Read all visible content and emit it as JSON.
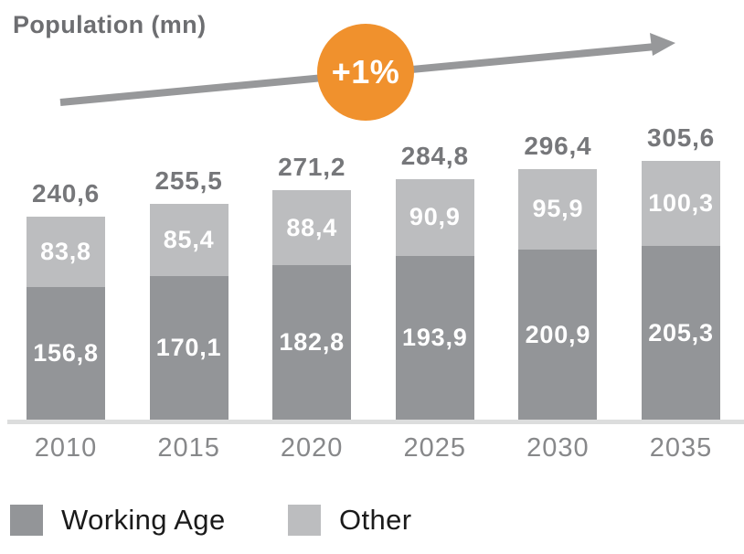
{
  "chart": {
    "title": "Population (mn)",
    "growth_badge": "+1%"
  },
  "legend": [
    {
      "label": "Working Age",
      "color": "#939598"
    },
    {
      "label": "Other",
      "color": "#bcbdbf"
    }
  ],
  "colors": {
    "working_age": "#939598",
    "other": "#bcbdbf",
    "accent_orange": "#f0912d",
    "arrow": "#97989a",
    "title_text": "#6d6e71",
    "total_label": "#76777a",
    "axis_label": "#87888a",
    "baseline": "#dcdddd"
  },
  "chart_data": {
    "type": "bar",
    "stacked": true,
    "title": "Population (mn)",
    "annotation": "+1%",
    "categories": [
      "2010",
      "2015",
      "2020",
      "2025",
      "2030",
      "2035"
    ],
    "series": [
      {
        "name": "Working Age",
        "color": "#939598",
        "values": [
          156.8,
          170.1,
          182.8,
          193.9,
          200.9,
          205.3
        ]
      },
      {
        "name": "Other",
        "color": "#bcbdbf",
        "values": [
          83.8,
          85.4,
          88.4,
          90.9,
          95.9,
          100.3
        ]
      }
    ],
    "totals": [
      240.6,
      255.5,
      271.2,
      284.8,
      296.4,
      305.6
    ],
    "value_labels": {
      "working_age": [
        "156,8",
        "170,1",
        "182,8",
        "193,9",
        "200,9",
        "205,3"
      ],
      "other": [
        "83,8",
        "85,4",
        "88,4",
        "90,9",
        "95,9",
        "100,3"
      ],
      "totals": [
        "240,6",
        "255,5",
        "271,2",
        "284,8",
        "296,4",
        "305,6"
      ]
    },
    "xlabel": "",
    "ylabel": "",
    "grid": false,
    "legend_position": "bottom-left",
    "decimal_separator": ","
  }
}
